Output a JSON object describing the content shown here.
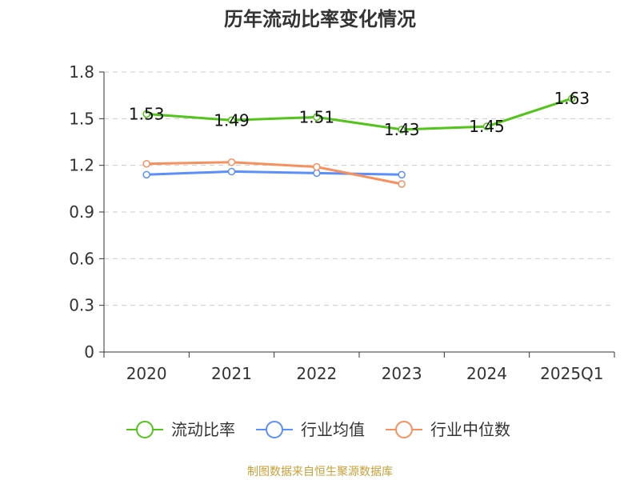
{
  "chart_data": {
    "type": "line",
    "title": "历年流动比率变化情况",
    "categories": [
      "2020",
      "2021",
      "2022",
      "2023",
      "2024",
      "2025Q1"
    ],
    "ylim": [
      0,
      1.8
    ],
    "yticks": [
      "0",
      "0.3",
      "0.6",
      "0.9",
      "1.2",
      "1.5",
      "1.8"
    ],
    "grid": true,
    "legend_position": "bottom",
    "series": [
      {
        "name": "流动比率",
        "color": "#52c41a",
        "values": [
          1.53,
          1.49,
          1.51,
          1.43,
          1.45,
          1.63
        ],
        "labels": [
          "1.53",
          "1.49",
          "1.51",
          "1.43",
          "1.45",
          "1.63"
        ]
      },
      {
        "name": "行业均值",
        "color": "#5b8ff9",
        "values": [
          1.14,
          1.16,
          1.15,
          1.14,
          null,
          null
        ]
      },
      {
        "name": "行业中位数",
        "color": "#f6905f",
        "values": [
          1.21,
          1.22,
          1.19,
          1.08,
          null,
          null
        ]
      }
    ]
  },
  "source": "制图数据来自恒生聚源数据库"
}
